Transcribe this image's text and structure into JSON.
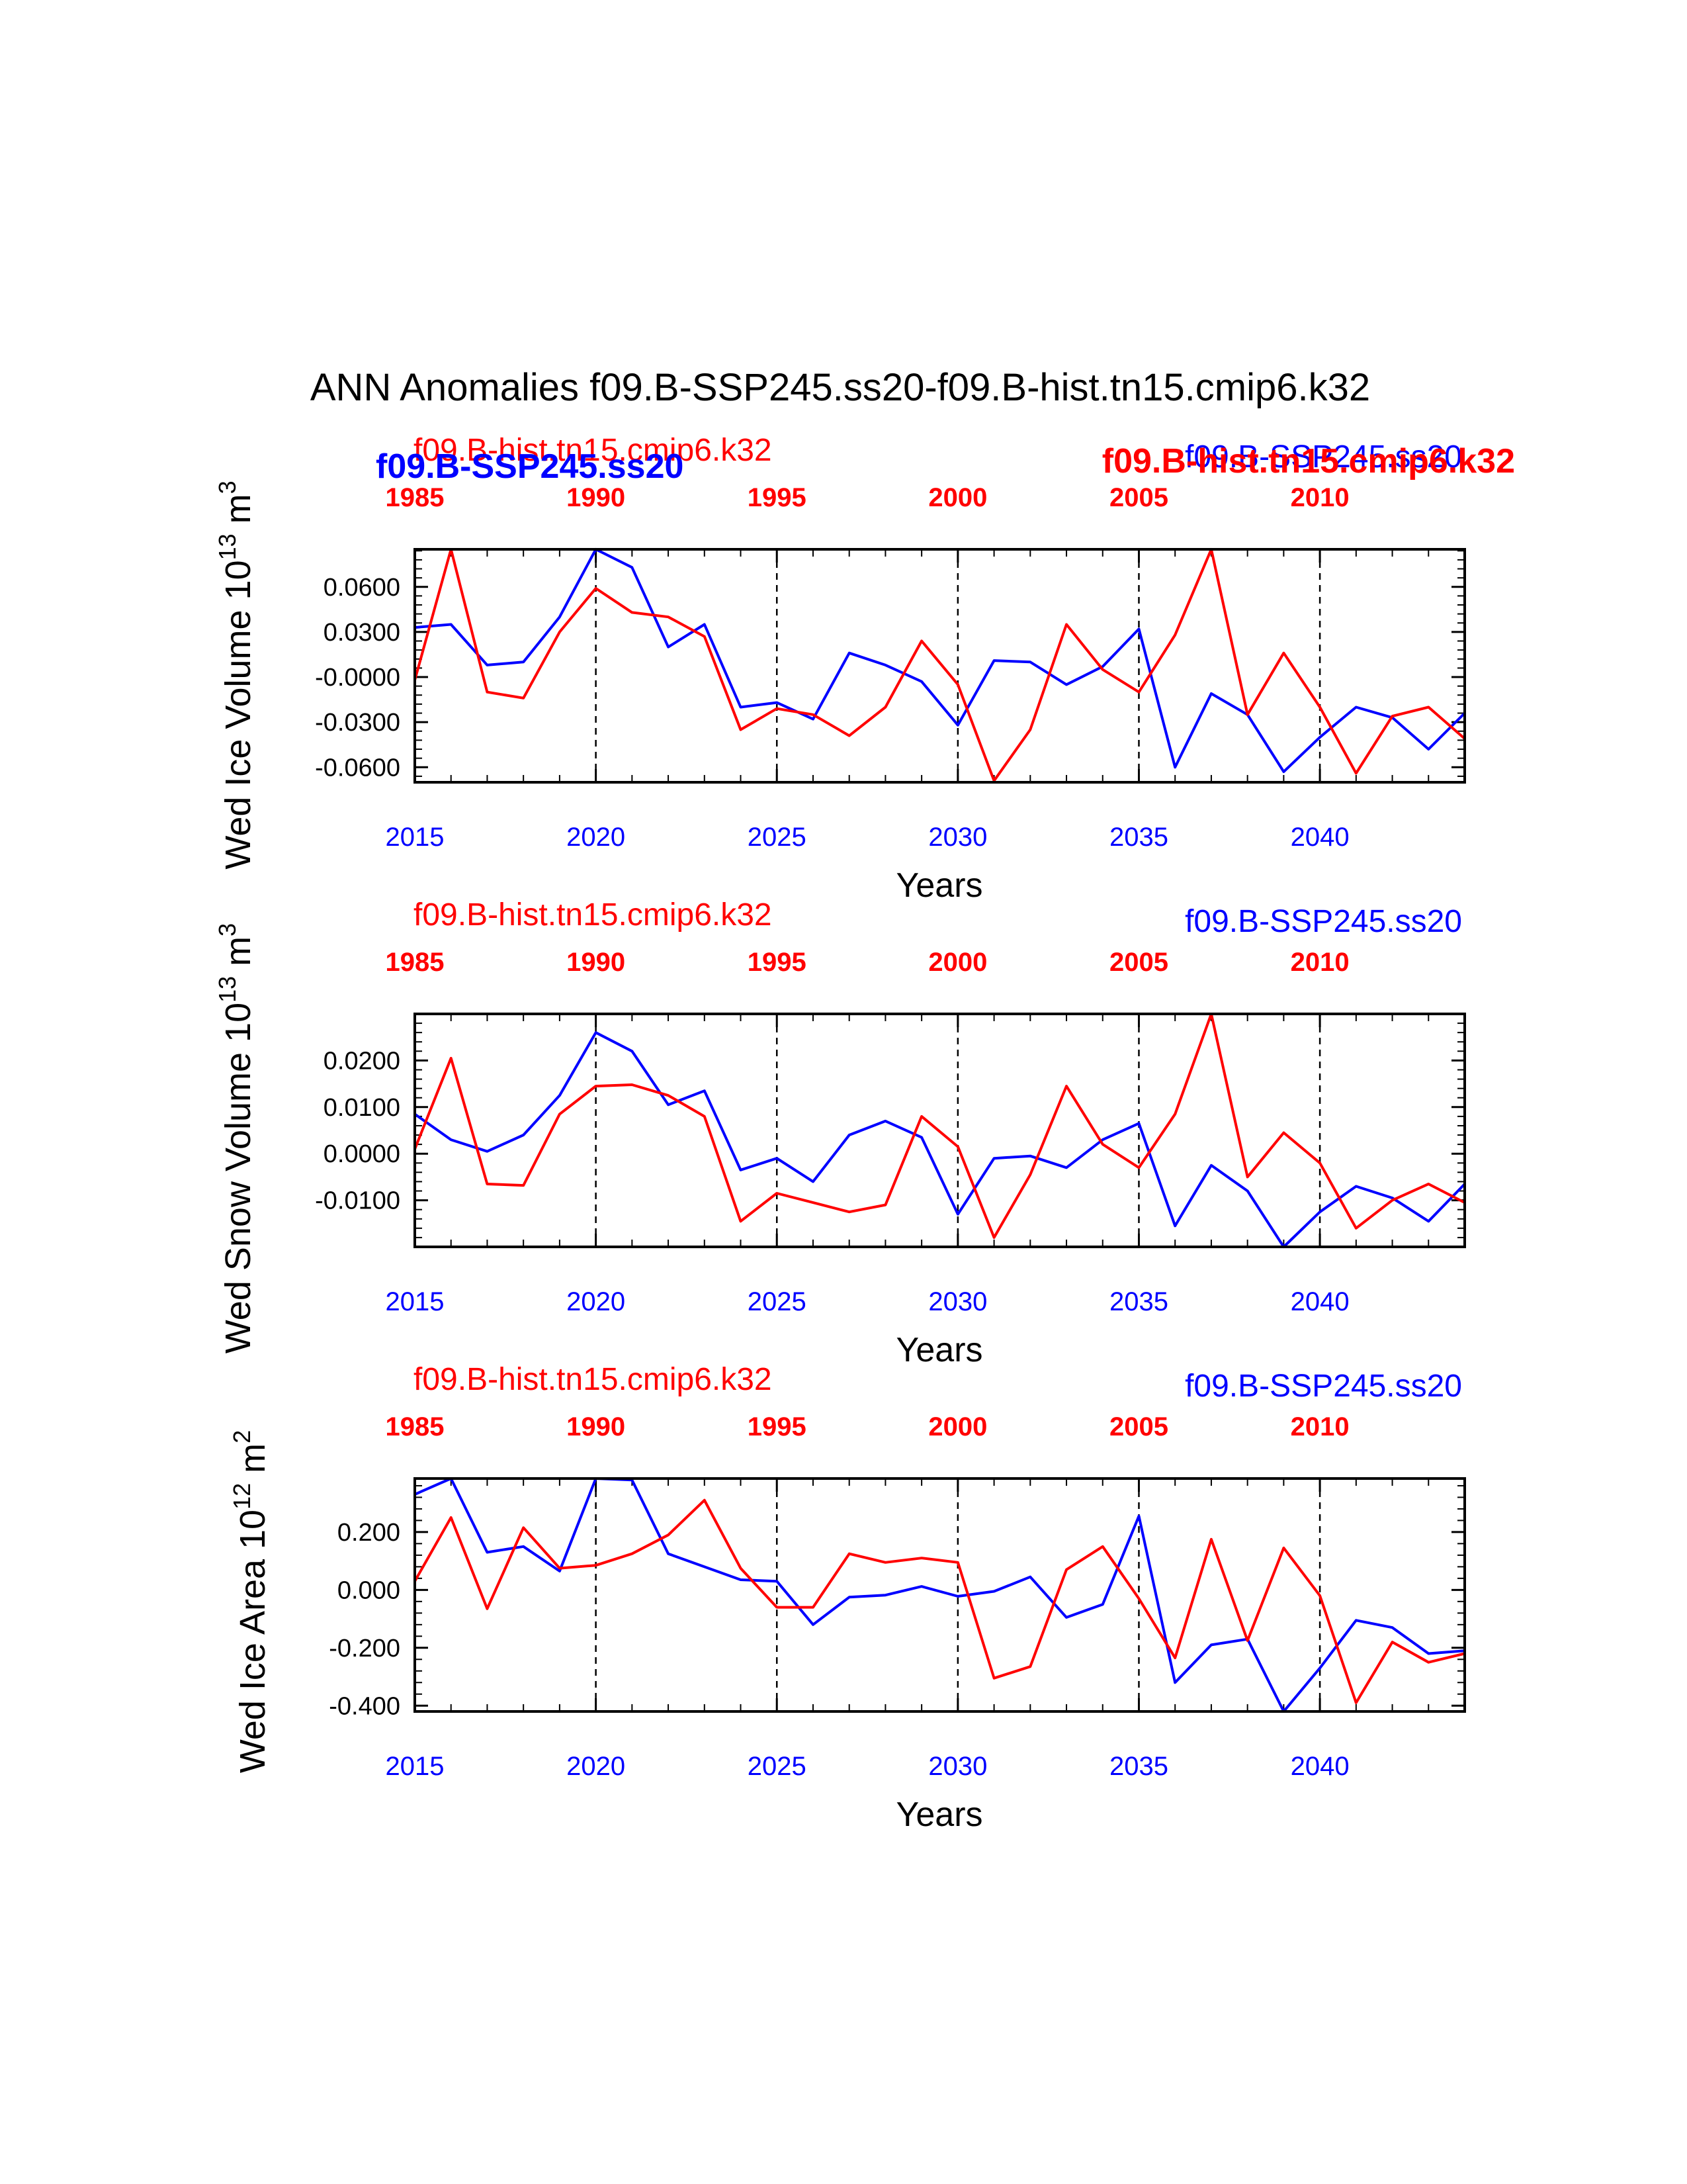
{
  "title": "ANN Anomalies f09.B-SSP245.ss20-f09.B-hist.tn15.cmip6.k32",
  "colors": {
    "hist": "#ff0000",
    "ssp": "#0000ff",
    "axis": "#000000"
  },
  "chart_data": [
    {
      "type": "line",
      "ylabel": "Wed Ice Volume 10",
      "ylabel_exp": "13",
      "ylabel_unit": " m",
      "ylabel_unit_exp": "3",
      "xlabel": "Years",
      "label_hist": "f09.B-hist.tn15.cmip6.k32",
      "label_ssp": "f09.B-SSP245.ss20",
      "label_hist_bold": "f09.B-hist.tn15.cmip6.k32",
      "label_ssp_bold": "f09.B-SSP245.ss20",
      "xlim": [
        2015,
        2044
      ],
      "ylim": [
        -0.07,
        0.085
      ],
      "yticks": [
        0.06,
        0.03,
        0.0,
        -0.03,
        -0.06
      ],
      "ytick_labels": [
        "0.0600",
        "0.0300",
        "-0.0000",
        "-0.0300",
        "-0.0600"
      ],
      "x_top_ticks": [
        "1985",
        "1990",
        "1995",
        "2000",
        "2005",
        "2010"
      ],
      "x_bottom_ticks": [
        "2015",
        "2020",
        "2025",
        "2030",
        "2035",
        "2040"
      ],
      "series": [
        {
          "key": "ssp",
          "x_start": 2015,
          "values": [
            0.033,
            0.035,
            0.008,
            0.01,
            0.04,
            0.085,
            0.073,
            0.02,
            0.035,
            -0.02,
            -0.017,
            -0.028,
            0.016,
            0.008,
            -0.003,
            -0.032,
            0.011,
            0.01,
            -0.005,
            0.007,
            0.032,
            -0.06,
            -0.011,
            -0.025,
            -0.063,
            -0.04,
            -0.02,
            -0.027,
            -0.048,
            -0.024
          ]
        },
        {
          "key": "hist",
          "x_start": 2015,
          "values": [
            -0.002,
            0.085,
            -0.01,
            -0.014,
            0.03,
            0.059,
            0.043,
            0.04,
            0.027,
            -0.035,
            -0.021,
            -0.025,
            -0.039,
            -0.02,
            0.024,
            -0.005,
            -0.069,
            -0.035,
            0.035,
            0.005,
            -0.01,
            0.028,
            0.085,
            -0.025,
            0.016,
            -0.02,
            -0.064,
            -0.026,
            -0.02,
            -0.041
          ]
        }
      ]
    },
    {
      "type": "line",
      "ylabel": "Wed Snow Volume 10",
      "ylabel_exp": "13",
      "ylabel_unit": " m",
      "ylabel_unit_exp": "3",
      "xlabel": "Years",
      "label_hist": "f09.B-hist.tn15.cmip6.k32",
      "label_ssp": "f09.B-SSP245.ss20",
      "xlim": [
        2015,
        2044
      ],
      "ylim": [
        -0.02,
        0.03
      ],
      "yticks": [
        0.02,
        0.01,
        0.0,
        -0.01
      ],
      "ytick_labels": [
        "0.0200",
        "0.0100",
        "0.0000",
        "-0.0100"
      ],
      "x_top_ticks": [
        "1985",
        "1990",
        "1995",
        "2000",
        "2005",
        "2010"
      ],
      "x_bottom_ticks": [
        "2015",
        "2020",
        "2025",
        "2030",
        "2035",
        "2040"
      ],
      "series": [
        {
          "key": "ssp",
          "x_start": 2015,
          "values": [
            0.0085,
            0.003,
            0.0005,
            0.004,
            0.0125,
            0.026,
            0.022,
            0.0105,
            0.0135,
            -0.0035,
            -0.001,
            -0.006,
            0.004,
            0.007,
            0.0035,
            -0.013,
            -0.001,
            -0.0005,
            -0.003,
            0.003,
            0.0065,
            -0.0155,
            -0.0025,
            -0.008,
            -0.02,
            -0.0125,
            -0.007,
            -0.0095,
            -0.0145,
            -0.0065
          ]
        },
        {
          "key": "hist",
          "x_start": 2015,
          "values": [
            0.001,
            0.0205,
            -0.0065,
            -0.0068,
            0.0085,
            0.0145,
            0.0148,
            0.0125,
            0.008,
            -0.0145,
            -0.0085,
            -0.0105,
            -0.0125,
            -0.011,
            0.008,
            0.0015,
            -0.018,
            -0.0045,
            0.0145,
            0.002,
            -0.003,
            0.0085,
            0.03,
            -0.005,
            0.0045,
            -0.002,
            -0.016,
            -0.01,
            -0.0065,
            -0.0105
          ]
        }
      ]
    },
    {
      "type": "line",
      "ylabel": "Wed Ice Area 10",
      "ylabel_exp": "12",
      "ylabel_unit": " m",
      "ylabel_unit_exp": "2",
      "xlabel": "Years",
      "label_hist": "f09.B-hist.tn15.cmip6.k32",
      "label_ssp": "f09.B-SSP245.ss20",
      "xlim": [
        2015,
        2044
      ],
      "ylim": [
        -0.42,
        0.385
      ],
      "yticks": [
        0.2,
        0.0,
        -0.2,
        -0.4
      ],
      "ytick_labels": [
        "0.200",
        "0.000",
        "-0.200",
        "-0.400"
      ],
      "x_top_ticks": [
        "1985",
        "1990",
        "1995",
        "2000",
        "2005",
        "2010"
      ],
      "x_bottom_ticks": [
        "2015",
        "2020",
        "2025",
        "2030",
        "2035",
        "2040"
      ],
      "series": [
        {
          "key": "ssp",
          "x_start": 2015,
          "values": [
            0.33,
            0.385,
            0.13,
            0.15,
            0.065,
            0.385,
            0.38,
            0.125,
            0.08,
            0.035,
            0.03,
            -0.12,
            -0.025,
            -0.018,
            0.012,
            -0.022,
            -0.005,
            0.045,
            -0.095,
            -0.05,
            0.255,
            -0.32,
            -0.19,
            -0.17,
            -0.42,
            -0.27,
            -0.105,
            -0.13,
            -0.22,
            -0.21
          ]
        },
        {
          "key": "hist",
          "x_start": 2015,
          "values": [
            0.03,
            0.25,
            -0.065,
            0.215,
            0.075,
            0.085,
            0.125,
            0.19,
            0.31,
            0.075,
            -0.06,
            -0.06,
            0.125,
            0.095,
            0.11,
            0.095,
            -0.305,
            -0.265,
            0.07,
            0.15,
            -0.03,
            -0.235,
            0.175,
            -0.175,
            0.145,
            -0.02,
            -0.39,
            -0.18,
            -0.25,
            -0.22
          ]
        }
      ]
    }
  ]
}
